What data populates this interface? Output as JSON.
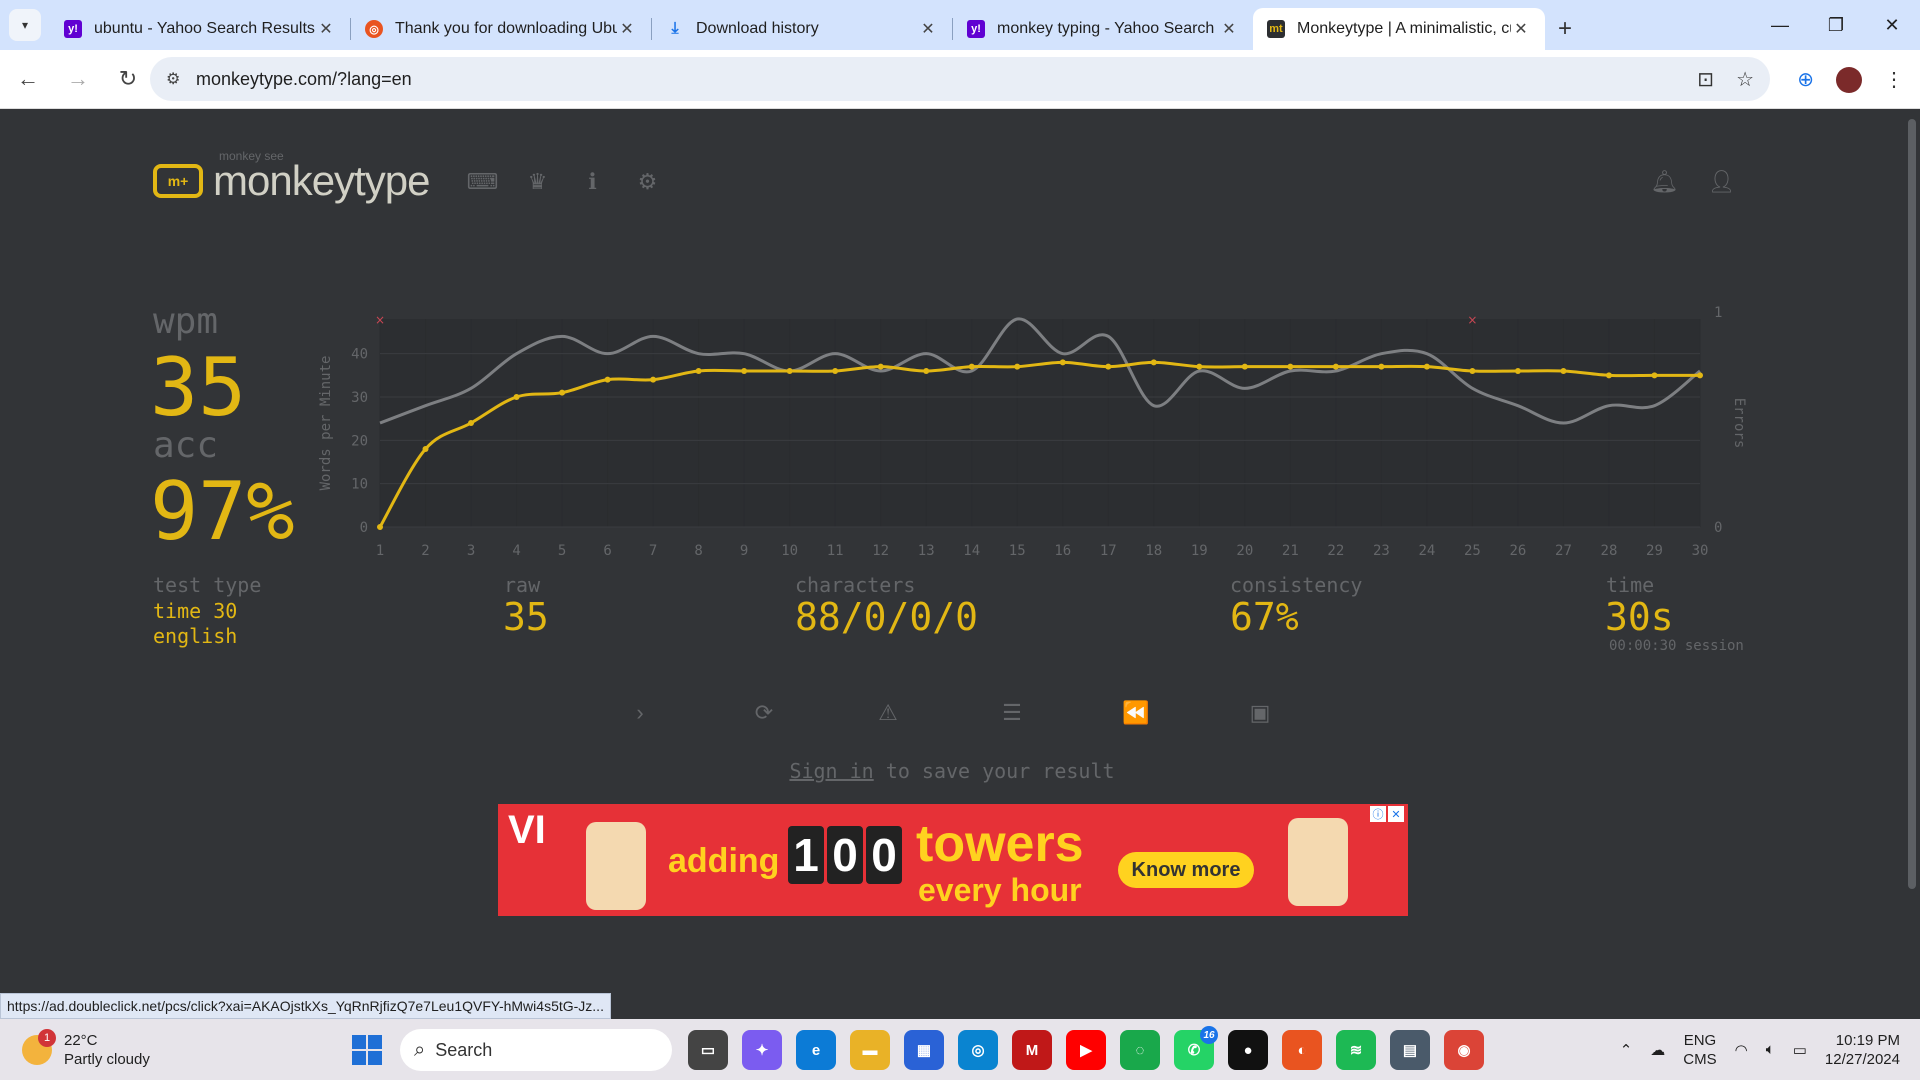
{
  "browser": {
    "tabs": [
      {
        "title": "ubuntu - Yahoo Search Results",
        "favicon": "yahoo-icon",
        "color": "#6001d2"
      },
      {
        "title": "Thank you for downloading Ubu",
        "favicon": "ubuntu-icon",
        "color": "#e95420"
      },
      {
        "title": "Download history",
        "favicon": "download-icon",
        "color": "#1a73e8"
      },
      {
        "title": "monkey typing - Yahoo Search",
        "favicon": "yahoo-icon",
        "color": "#6001d2"
      },
      {
        "title": "Monkeytype | A minimalistic, cu",
        "favicon": "monkeytype-icon",
        "color": "#2c2e31"
      }
    ],
    "active_tab": 4,
    "url": "monkeytype.com/?lang=en",
    "status_url": "https://ad.doubleclick.net/pcs/click?xai=AKAOjstkXs_YqRnRjfizQ7e7Leu1QVFY-hMwi4s5tG-Jz..."
  },
  "header": {
    "logo_sub": "monkey see",
    "logo_text": "monkeytype",
    "logo_mark": "m+"
  },
  "result": {
    "wpm_label": "wpm",
    "wpm": "35",
    "acc_label": "acc",
    "acc": "97%",
    "test_type_label": "test type",
    "test_type_line1": "time 30",
    "test_type_line2": "english",
    "raw_label": "raw",
    "raw": "35",
    "characters_label": "characters",
    "characters": "88/0/0/0",
    "consistency_label": "consistency",
    "consistency": "67%",
    "time_label": "time",
    "time": "30s",
    "session": "00:00:30 session"
  },
  "chart_data": {
    "type": "line",
    "x": [
      1,
      2,
      3,
      4,
      5,
      6,
      7,
      8,
      9,
      10,
      11,
      12,
      13,
      14,
      15,
      16,
      17,
      18,
      19,
      20,
      21,
      22,
      23,
      24,
      25,
      26,
      27,
      28,
      29,
      30
    ],
    "ylabel": "Words per Minute",
    "y2label": "Errors",
    "ylim": [
      0,
      48
    ],
    "y_ticks": [
      0,
      10,
      20,
      30,
      40
    ],
    "y2_ticks": [
      0,
      1
    ],
    "series": [
      {
        "color": "#e2b714",
        "values": [
          0,
          18,
          24,
          30,
          31,
          34,
          34,
          36,
          36,
          36,
          36,
          37,
          36,
          37,
          37,
          38,
          37,
          38,
          37,
          37,
          37,
          37,
          37,
          37,
          36,
          36,
          36,
          35,
          35,
          35
        ]
      },
      {
        "color": "#7d7f82",
        "values": [
          24,
          28,
          32,
          40,
          44,
          40,
          44,
          40,
          40,
          36,
          40,
          36,
          40,
          36,
          48,
          40,
          44,
          28,
          36,
          32,
          36,
          36,
          40,
          40,
          32,
          28,
          24,
          28,
          28,
          36
        ]
      }
    ],
    "errors": [
      {
        "x": 1,
        "count": 1
      },
      {
        "x": 25,
        "count": 1
      }
    ],
    "grid": true
  },
  "actions": [
    {
      "name": "next-test-button",
      "icon": "›"
    },
    {
      "name": "restart-button",
      "icon": "⟳"
    },
    {
      "name": "report-button",
      "icon": "⚠"
    },
    {
      "name": "words-history-button",
      "icon": "☰"
    },
    {
      "name": "replay-button",
      "icon": "⏪"
    },
    {
      "name": "screenshot-button",
      "icon": "▣"
    }
  ],
  "signin": {
    "link": "Sign in",
    "rest": " to save your result"
  },
  "ad": {
    "brand": "VI",
    "adding": "adding",
    "digits": [
      "1",
      "0",
      "0"
    ],
    "towers": "towers",
    "every": "every hour",
    "cta": "Know more",
    "colors": {
      "bg": "#e63137",
      "text": "#ffd21f"
    }
  },
  "taskbar": {
    "weather_temp": "22°C",
    "weather_desc": "Partly cloudy",
    "weather_badge": "1",
    "search_placeholder": "Search",
    "apps": [
      {
        "name": "task-view-icon",
        "label": "▭",
        "color": "#444"
      },
      {
        "name": "copilot-icon",
        "label": "✦",
        "color": "#7b5cf0"
      },
      {
        "name": "edge-icon",
        "label": "e",
        "color": "#0c7bd6"
      },
      {
        "name": "file-explorer-icon",
        "label": "▬",
        "color": "#e9b227"
      },
      {
        "name": "ms-store-icon",
        "label": "▦",
        "color": "#2a62d6"
      },
      {
        "name": "app-icon",
        "label": "◎",
        "color": "#0a84d0"
      },
      {
        "name": "mcafee-icon",
        "label": "M",
        "color": "#c01818"
      },
      {
        "name": "youtube-icon",
        "label": "▶",
        "color": "#ff0000"
      },
      {
        "name": "loader-icon",
        "label": "◌",
        "color": "#19a84b"
      },
      {
        "name": "whatsapp-icon",
        "label": "✆",
        "color": "#25d366",
        "badge": "16"
      },
      {
        "name": "github-icon",
        "label": "●",
        "color": "#111"
      },
      {
        "name": "ubuntu-app-icon",
        "label": "◐",
        "color": "#e95420"
      },
      {
        "name": "spotify-icon",
        "label": "≋",
        "color": "#1db954"
      },
      {
        "name": "window-app-icon",
        "label": "▤",
        "color": "#4a5a6a"
      },
      {
        "name": "chrome-icon",
        "label": "◉",
        "color": "#db4437"
      }
    ],
    "lang_line1": "ENG",
    "lang_line2": "CMS",
    "time": "10:19 PM",
    "date": "12/27/2024"
  }
}
